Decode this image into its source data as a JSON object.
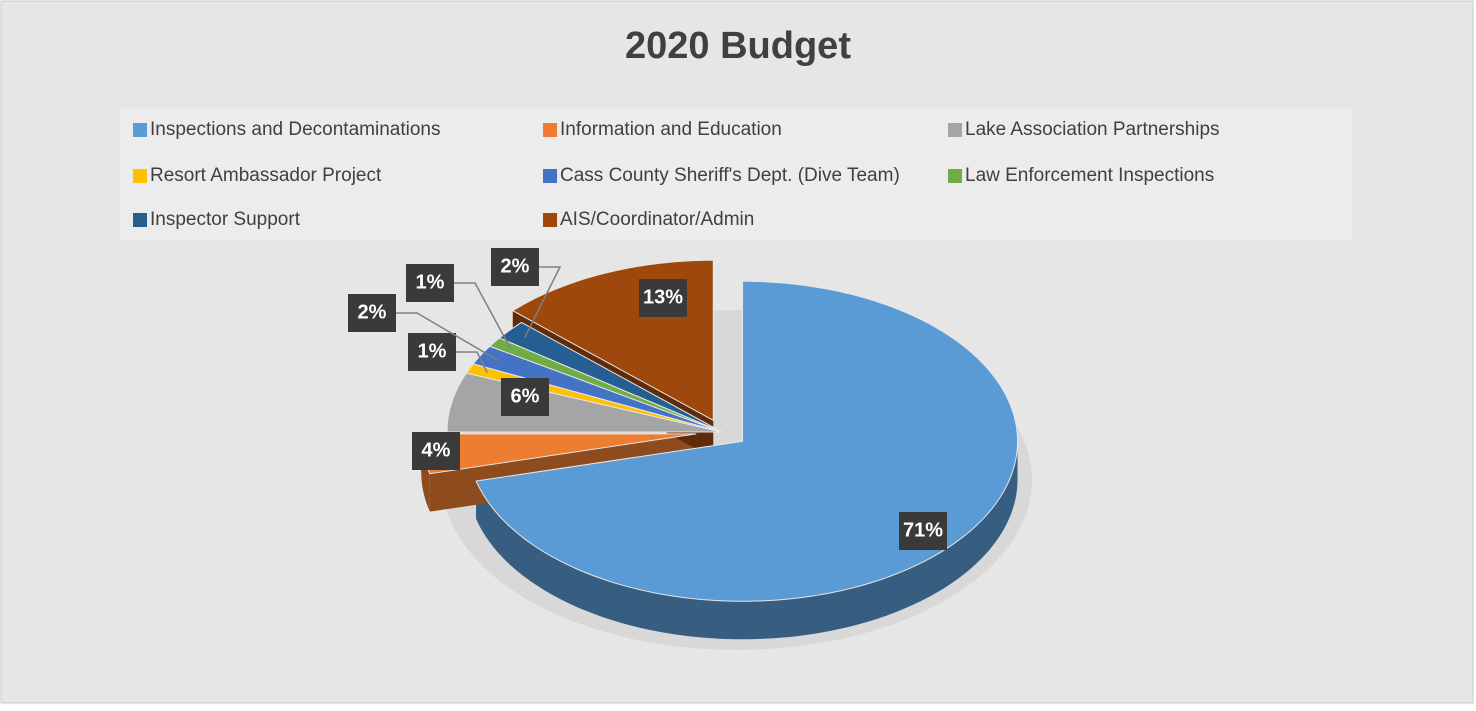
{
  "chart_data": {
    "type": "pie",
    "title": "2020 Budget",
    "categories": [
      "Inspections and Decontaminations",
      "Information and Education",
      "Lake Association Partnerships",
      "Resort Ambassador Project",
      "Cass County Sheriff's Dept. (Dive Team)",
      "Law Enforcement Inspections",
      "Inspector Support",
      "AIS/Coordinator/Admin"
    ],
    "values": [
      71,
      4,
      6,
      1,
      2,
      1,
      2,
      13
    ],
    "value_labels": [
      "71%",
      "4%",
      "6%",
      "1%",
      "2%",
      "1%",
      "2%",
      "13%"
    ],
    "colors": [
      "#5b9bd5",
      "#ed7d31",
      "#a5a5a5",
      "#ffc000",
      "#4472c4",
      "#70ad47",
      "#255e91",
      "#9e480e"
    ],
    "legend": "top"
  }
}
